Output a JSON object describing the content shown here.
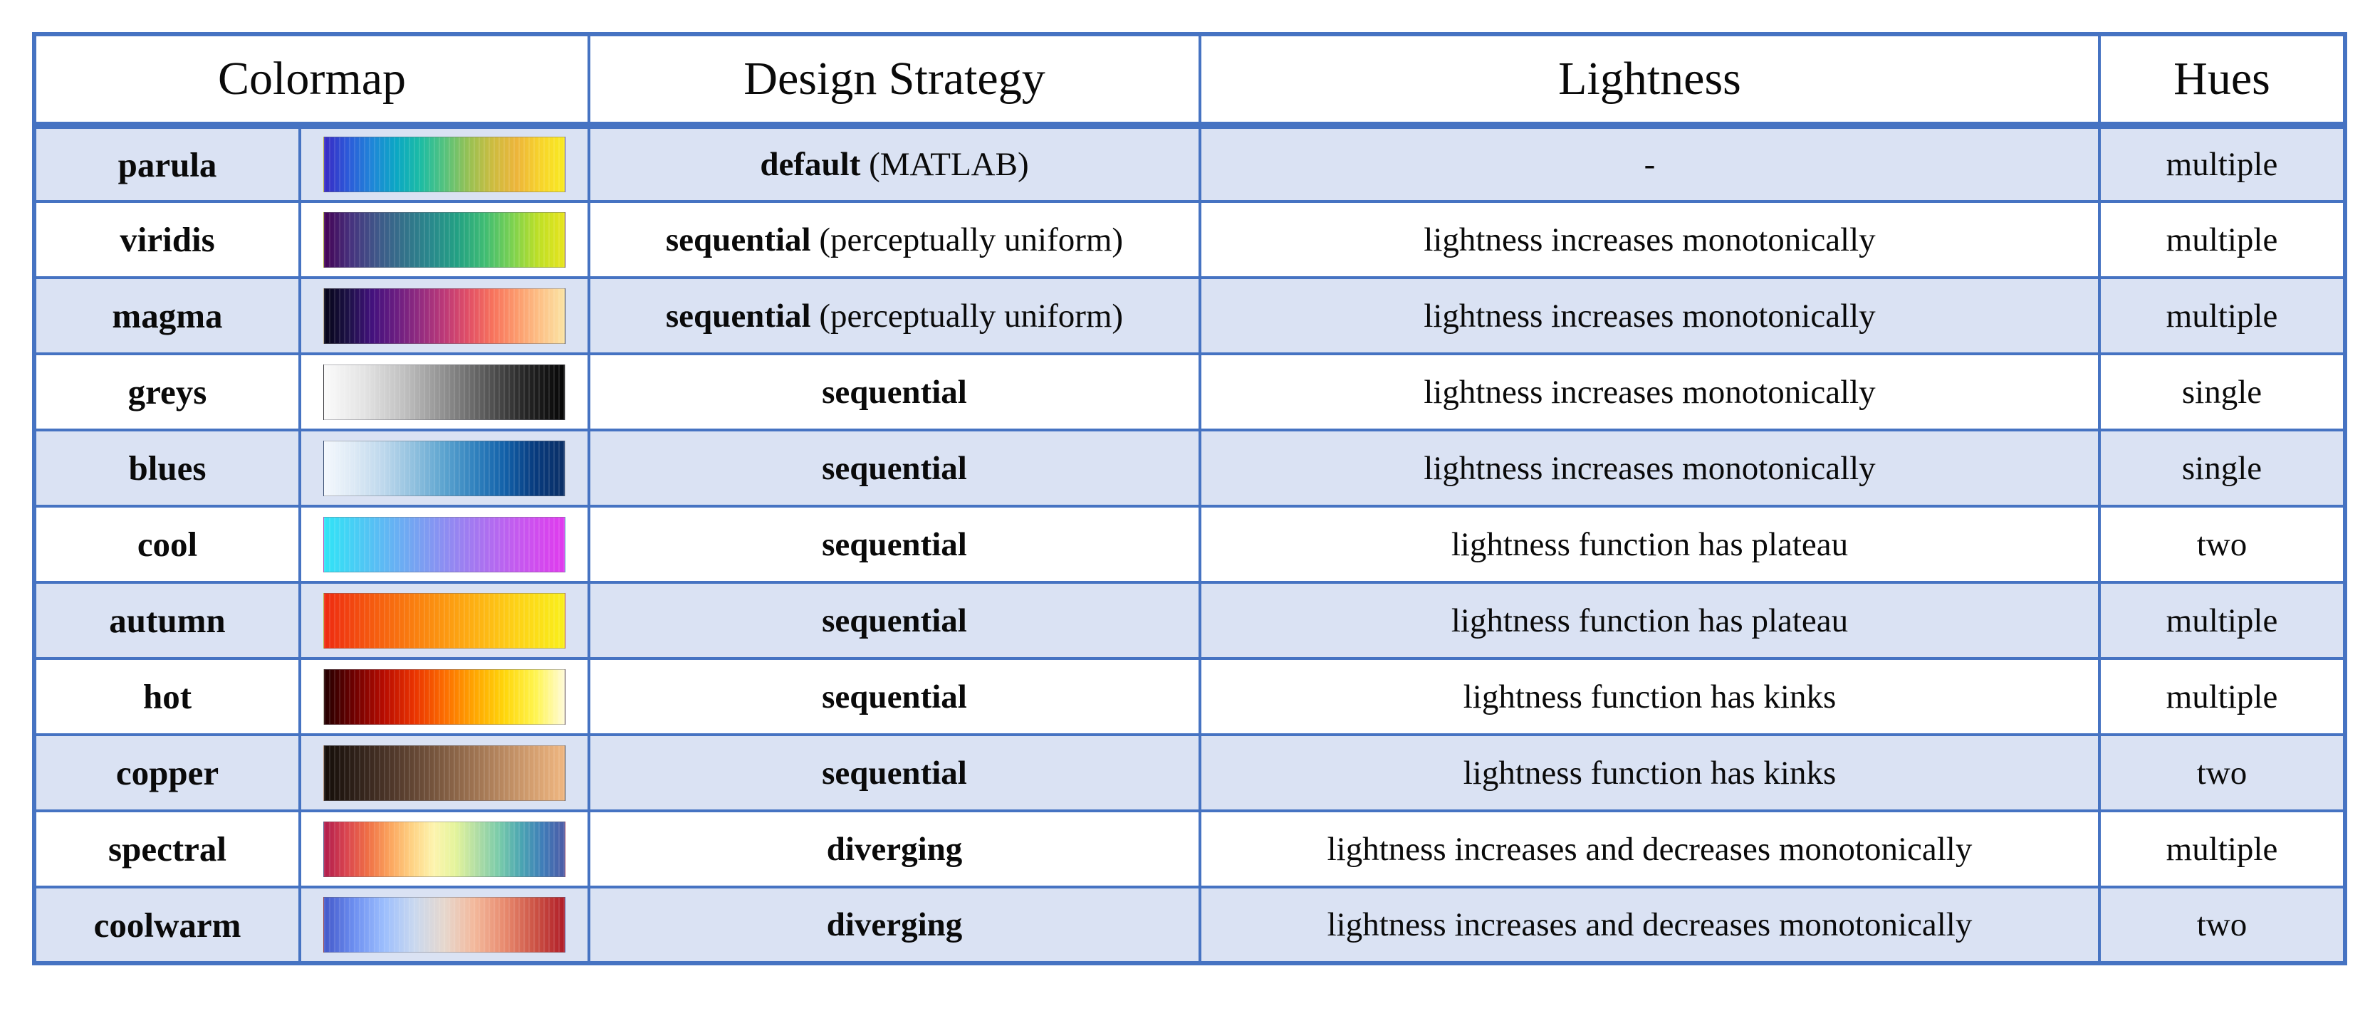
{
  "table": {
    "headers": [
      "Colormap",
      "Design Strategy",
      "Lightness",
      "Hues"
    ],
    "rows": [
      {
        "name": "parula",
        "strategy": "default",
        "strategy_note": "(MATLAB)",
        "lightness": "-",
        "hues": "multiple",
        "swatch": [
          "#3729c3",
          "#2c5ad9",
          "#1f86d8",
          "#0ba7c4",
          "#1cbca4",
          "#55c27d",
          "#97c153",
          "#ccbc3f",
          "#edb53a",
          "#f7d42a",
          "#f9ea20"
        ]
      },
      {
        "name": "viridis",
        "strategy": "sequential",
        "strategy_note": "(perceptually uniform)",
        "lightness": "lightness increases monotonically",
        "hues": "multiple",
        "swatch": [
          "#440154",
          "#46327e",
          "#3f5889",
          "#33728a",
          "#29898c",
          "#23a183",
          "#3fbc73",
          "#79d151",
          "#bddf26",
          "#e8e41c"
        ]
      },
      {
        "name": "magma",
        "strategy": "sequential",
        "strategy_note": "(perceptually uniform)",
        "lightness": "lightness increases monotonically",
        "hues": "multiple",
        "swatch": [
          "#050416",
          "#1d1147",
          "#43117d",
          "#6b1d81",
          "#942c80",
          "#bd3977",
          "#e14f66",
          "#f7725c",
          "#fc9a6c",
          "#fdc287",
          "#fbe3a3"
        ]
      },
      {
        "name": "greys",
        "strategy": "sequential",
        "strategy_note": "",
        "lightness": "lightness increases monotonically",
        "hues": "single",
        "swatch": [
          "#fbfbfb",
          "#e3e3e3",
          "#c0c0c0",
          "#8f8f8f",
          "#5a5a5a",
          "#262626",
          "#050505"
        ]
      },
      {
        "name": "blues",
        "strategy": "sequential",
        "strategy_note": "",
        "lightness": "lightness increases monotonically",
        "hues": "single",
        "swatch": [
          "#f4f8fd",
          "#dce9f5",
          "#bcd7ec",
          "#8fc0de",
          "#5ba3cf",
          "#3182be",
          "#1361a9",
          "#083b7e",
          "#0a2f66"
        ]
      },
      {
        "name": "cool",
        "strategy": "sequential",
        "strategy_note": "",
        "lightness": "lightness function has plateau",
        "hues": "two",
        "swatch": [
          "#30e4f6",
          "#55c1f4",
          "#7a9ff2",
          "#9f7cf1",
          "#c45aef",
          "#e03aee"
        ]
      },
      {
        "name": "autumn",
        "strategy": "sequential",
        "strategy_note": "",
        "lightness": "lightness function has plateau",
        "hues": "multiple",
        "swatch": [
          "#ee2a10",
          "#f55a0f",
          "#fa840f",
          "#fdab12",
          "#fdd216",
          "#f9ef1b"
        ]
      },
      {
        "name": "hot",
        "strategy": "sequential",
        "strategy_note": "",
        "lightness": "lightness function has kinks",
        "hues": "multiple",
        "swatch": [
          "#230000",
          "#6f0000",
          "#b80c00",
          "#ea3300",
          "#fc6d00",
          "#ffa600",
          "#ffd60a",
          "#fff44c",
          "#fffbd9"
        ]
      },
      {
        "name": "copper",
        "strategy": "sequential",
        "strategy_note": "",
        "lightness": "lightness function has kinks",
        "hues": "two",
        "swatch": [
          "#140d08",
          "#31221a",
          "#50382a",
          "#70503a",
          "#91694a",
          "#b2835c",
          "#d29d6e",
          "#efb680"
        ]
      },
      {
        "name": "spectral",
        "strategy": "diverging",
        "strategy_note": "",
        "lightness": "lightness increases and decreases monotonically",
        "hues": "multiple",
        "swatch": [
          "#b01b4c",
          "#d9444f",
          "#ef6f45",
          "#fba45d",
          "#fed283",
          "#fdf4ae",
          "#e4f49b",
          "#b0dda4",
          "#79cbaa",
          "#4ba5b2",
          "#3f7cb8",
          "#4d5aa5"
        ]
      },
      {
        "name": "coolwarm",
        "strategy": "diverging",
        "strategy_note": "",
        "lightness": "lightness increases and decreases monotonically",
        "hues": "two",
        "swatch": [
          "#4257c9",
          "#6d8ff1",
          "#9cbefd",
          "#c9d8ef",
          "#e6d7cd",
          "#f3b89b",
          "#e88a6e",
          "#cc5345",
          "#b01c27"
        ]
      }
    ]
  },
  "colors": {
    "border": "#4673c2",
    "row_band": "#dae2f3",
    "row_plain": "#ffffff",
    "background": "#ffffff",
    "text": "#0a0a0a"
  }
}
